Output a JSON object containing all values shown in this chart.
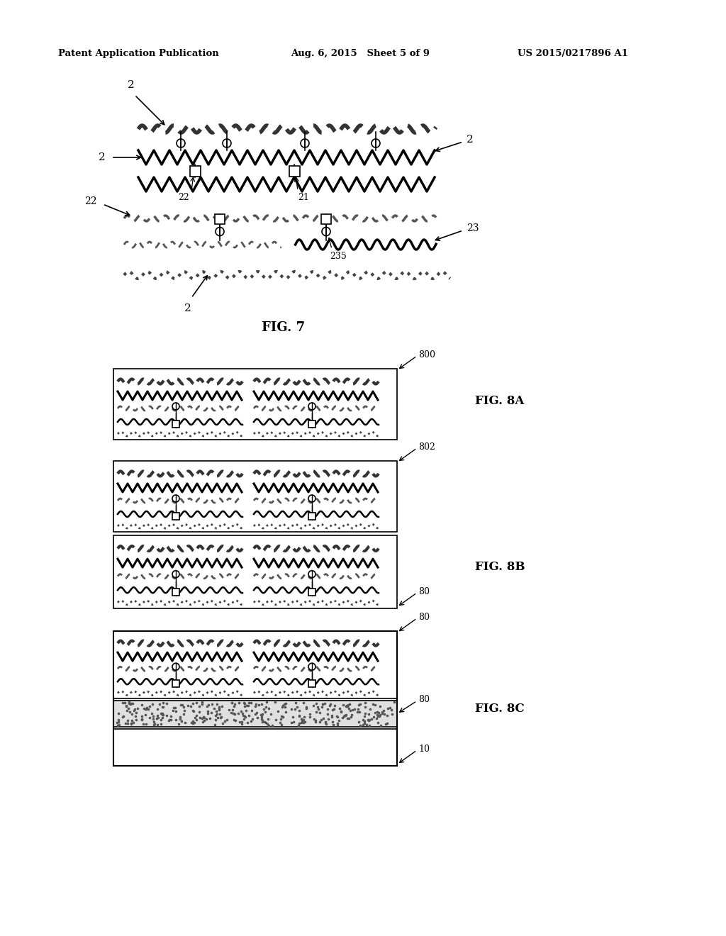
{
  "header_left": "Patent Application Publication",
  "header_mid": "Aug. 6, 2015   Sheet 5 of 9",
  "header_right": "US 2015/0217896 A1",
  "fig7_label": "FIG. 7",
  "fig8a_label": "FIG. 8A",
  "fig8b_label": "FIG. 8B",
  "fig8c_label": "FIG. 8C",
  "bg_color": "#ffffff"
}
